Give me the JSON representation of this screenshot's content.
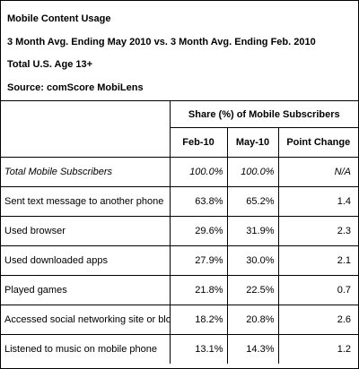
{
  "header": {
    "title": "Mobile Content Usage",
    "period": "3 Month Avg. Ending May 2010 vs. 3 Month Avg. Ending Feb. 2010",
    "population": "Total U.S. Age 13+",
    "source": "Source: comScore MobiLens"
  },
  "table": {
    "group_header": "Share (%) of Mobile Subscribers",
    "columns": [
      "Feb-10",
      "May-10",
      "Point Change"
    ]
  },
  "chart_data": {
    "type": "table",
    "title": "Mobile Content Usage",
    "columns": [
      "Feb-10",
      "May-10",
      "Point Change"
    ],
    "rows": [
      {
        "label": "Total Mobile Subscribers",
        "feb": "100.0%",
        "may": "100.0%",
        "change": "N/A"
      },
      {
        "label": "Sent text message to another phone",
        "feb": "63.8%",
        "may": "65.2%",
        "change": "1.4"
      },
      {
        "label": "Used browser",
        "feb": "29.6%",
        "may": "31.9%",
        "change": "2.3"
      },
      {
        "label": "Used downloaded apps",
        "feb": "27.9%",
        "may": "30.0%",
        "change": "2.1"
      },
      {
        "label": "Played games",
        "feb": "21.8%",
        "may": "22.5%",
        "change": "0.7"
      },
      {
        "label": "Accessed social networking site or blog",
        "feb": "18.2%",
        "may": "20.8%",
        "change": "2.6"
      },
      {
        "label": "Listened to music on mobile phone",
        "feb": "13.1%",
        "may": "14.3%",
        "change": "1.2"
      }
    ]
  }
}
